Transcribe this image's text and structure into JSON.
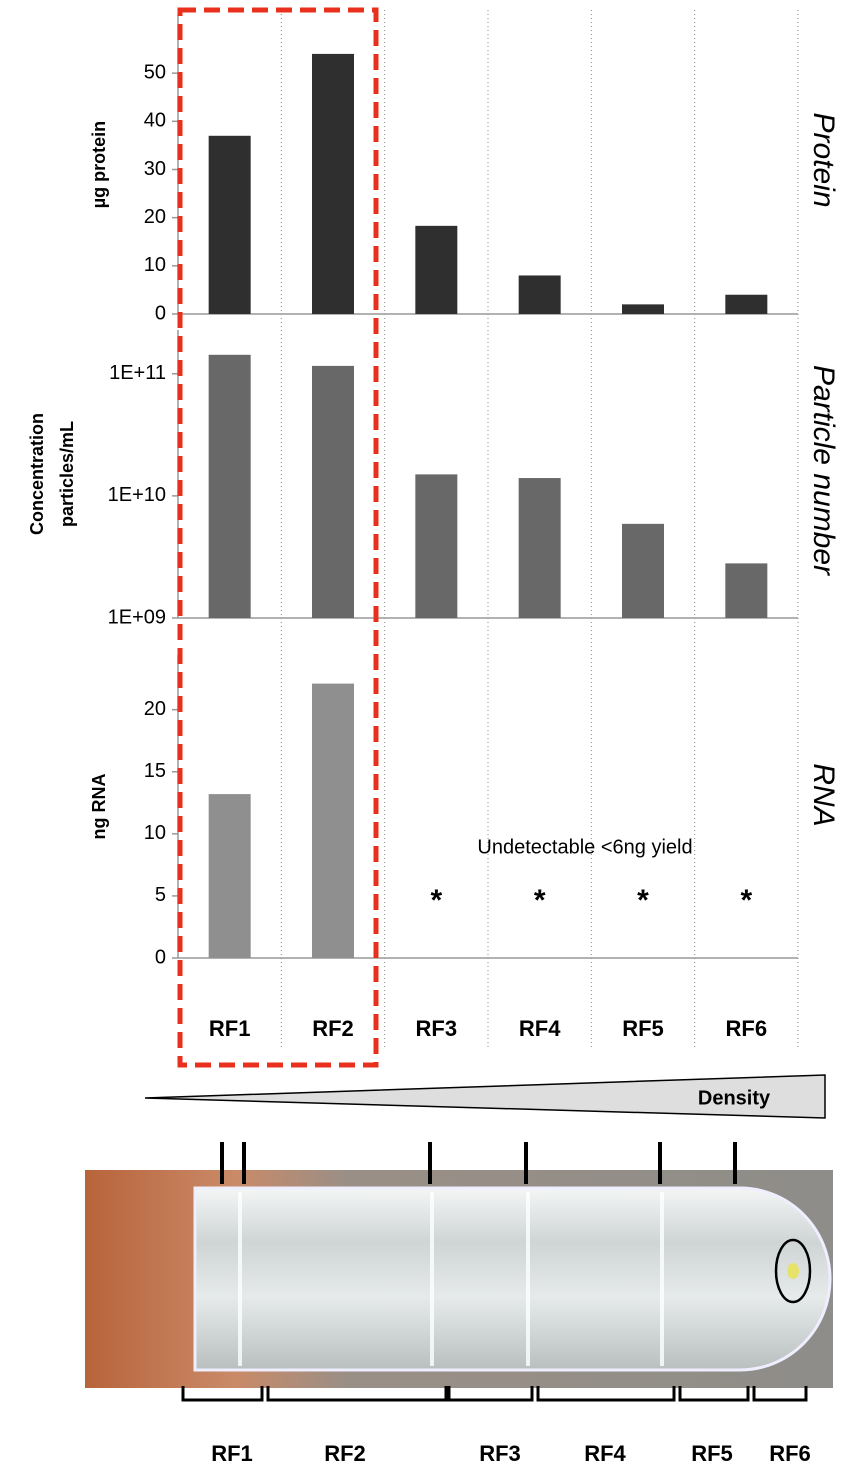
{
  "chart_data": [
    {
      "type": "bar",
      "title": "Protein",
      "y_label": "µg protein",
      "color": "#2f2f2f",
      "values": [
        37,
        54,
        18.3,
        8,
        2,
        4
      ],
      "ylim": [
        0,
        60
      ],
      "yticks": [
        0,
        10,
        20,
        30,
        40,
        50
      ]
    },
    {
      "type": "bar",
      "title": "Particle number",
      "y_label": [
        "Concentration",
        "particles/mL"
      ],
      "color": "#686868",
      "log_scale": true,
      "values": [
        143000000000,
        116000000000,
        15000000000,
        14000000000,
        5900000000,
        2800000000
      ],
      "ylim": [
        1000000000,
        200000000000
      ],
      "yticks": [
        {
          "value": 1000000000,
          "label": "1E+09"
        },
        {
          "value": 10000000000,
          "label": "1E+10"
        },
        {
          "value": 100000000000,
          "label": "1E+11"
        }
      ]
    },
    {
      "type": "bar",
      "title": "RNA",
      "y_label": "ng RNA",
      "color": "#8f8f8f",
      "categories": [
        "RF1",
        "RF2",
        "RF3",
        "RF4",
        "RF5",
        "RF6"
      ],
      "values": [
        13.2,
        22.1,
        null,
        null,
        null,
        null
      ],
      "ylim": [
        0,
        24
      ],
      "yticks": [
        0,
        5,
        10,
        15,
        20
      ],
      "annotation": "Undetectable <6ng yield",
      "markers": [
        "*",
        "*",
        "*",
        "*"
      ]
    }
  ],
  "diagram": {
    "gradient_label": "Density",
    "fractions": [
      "RF1",
      "RF2",
      "RF3",
      "RF4",
      "RF5",
      "RF6"
    ]
  }
}
